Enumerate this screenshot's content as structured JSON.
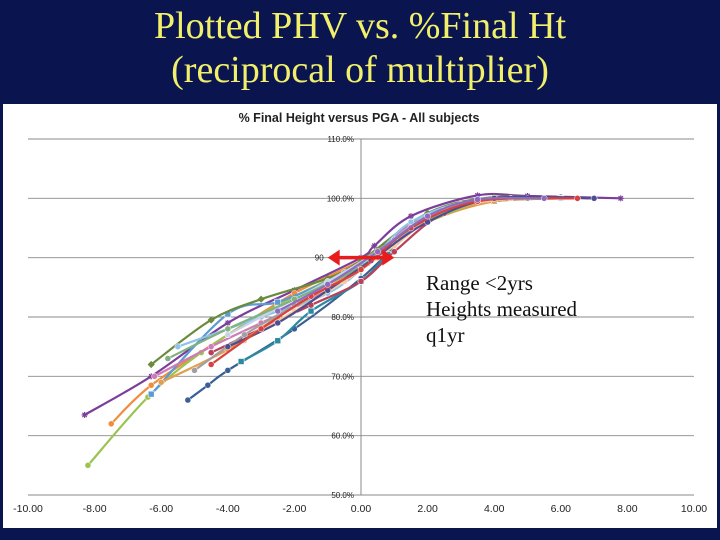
{
  "slide": {
    "title_line1": "Plotted PHV vs. %Final Ht",
    "title_line2": "(reciprocal of multiplier)"
  },
  "annotation": {
    "lines": [
      "Range <2yrs",
      "Heights measured",
      "q1yr"
    ]
  },
  "colors": {
    "background": "#0a1550",
    "title": "#f2f06a",
    "range_arrow": "#e81c1c"
  },
  "chart_data": {
    "type": "line",
    "title": "% Final Height versus PGA - All subjects",
    "xlabel": "",
    "ylabel": "",
    "xlim": [
      -10,
      10
    ],
    "ylim": [
      50,
      110
    ],
    "x_ticks": [
      -10,
      -8,
      -6,
      -4,
      -2,
      0,
      2,
      4,
      6,
      8,
      10
    ],
    "x_tick_labels": [
      "-10.00",
      "-8.00",
      "-6.00",
      "-4.00",
      "-2.00",
      "0.00",
      "2.00",
      "4.00",
      "6.00",
      "8.00",
      "10.00"
    ],
    "y_ticks": [
      50,
      60,
      70,
      80,
      90,
      100,
      110
    ],
    "y_tick_labels": [
      "50.0%",
      "60.0%",
      "70.0%",
      "80.0%",
      "90.0%",
      "100.0%",
      "110.0%"
    ],
    "grid": true,
    "legend": "none",
    "range_arrow": {
      "x_start": -1.0,
      "x_end": 1.0,
      "y": 90
    },
    "series": [
      {
        "color": "#7b3f9b",
        "marker": "star",
        "x": [
          -8.3,
          -6.3,
          -4.0,
          -2.0,
          0.0,
          0.4,
          1.5,
          3.5,
          5.0,
          7.8
        ],
        "y": [
          63.5,
          70.0,
          79.0,
          84.5,
          90.0,
          92.0,
          97.0,
          100.5,
          100.4,
          100.0
        ]
      },
      {
        "color": "#f08c3c",
        "marker": "circle",
        "x": [
          -7.5,
          -6.3,
          -4.0,
          -2.0,
          0.0,
          2.0,
          4.0,
          6.0
        ],
        "y": [
          62.0,
          68.5,
          77.0,
          84.0,
          89.5,
          96.0,
          99.5,
          100.0
        ]
      },
      {
        "color": "#9bc34f",
        "marker": "circle",
        "x": [
          -8.2,
          -6.4,
          -4.8,
          -2.5,
          0.0,
          2.0,
          4.0,
          6.5
        ],
        "y": [
          55.0,
          66.5,
          74.0,
          82.0,
          89.0,
          96.0,
          99.6,
          100.0
        ]
      },
      {
        "color": "#3a5f94",
        "marker": "circle",
        "x": [
          -5.2,
          -4.6,
          -4.0,
          -2.0,
          0.0,
          2.0,
          4.0,
          6.0
        ],
        "y": [
          66.0,
          68.5,
          71.0,
          78.0,
          86.5,
          96.5,
          99.8,
          100.2
        ]
      },
      {
        "color": "#2c8aa0",
        "marker": "square",
        "x": [
          -3.6,
          -2.5,
          -1.5,
          0.0,
          0.8,
          2.0,
          4.0,
          6.0
        ],
        "y": [
          72.5,
          76.0,
          81.0,
          86.0,
          90.5,
          97.0,
          99.5,
          100.0
        ]
      },
      {
        "color": "#5b9bd5",
        "marker": "square",
        "x": [
          -6.3,
          -4.0,
          -2.5,
          -1.0,
          0.0,
          1.5,
          3.5,
          6.0
        ],
        "y": [
          67.0,
          80.5,
          82.5,
          86.0,
          89.0,
          95.5,
          99.5,
          100.0
        ]
      },
      {
        "color": "#6a8a3c",
        "marker": "diamond",
        "x": [
          -6.3,
          -4.5,
          -3.0,
          -1.0,
          0.0,
          2.0,
          4.0,
          6.5
        ],
        "y": [
          72.0,
          79.5,
          83.0,
          86.5,
          89.5,
          97.5,
          100.2,
          100.0
        ]
      },
      {
        "color": "#b8405a",
        "marker": "circle",
        "x": [
          -4.5,
          -3.0,
          -1.5,
          0.0,
          1.0,
          2.5,
          4.5,
          7.0
        ],
        "y": [
          74.0,
          78.0,
          82.0,
          86.0,
          91.0,
          97.5,
          100.0,
          100.0
        ]
      },
      {
        "color": "#cf7bb5",
        "marker": "circle",
        "x": [
          -6.2,
          -4.5,
          -3.0,
          -1.5,
          0.0,
          1.5,
          3.5,
          6.0
        ],
        "y": [
          70.0,
          75.0,
          79.0,
          83.0,
          88.0,
          95.5,
          99.5,
          100.0
        ]
      },
      {
        "color": "#8fc3e8",
        "marker": "circle",
        "x": [
          -5.5,
          -3.0,
          -1.0,
          0.2,
          1.5,
          3.5,
          6.0
        ],
        "y": [
          75.0,
          80.0,
          84.0,
          89.0,
          96.0,
          99.8,
          100.0
        ]
      },
      {
        "color": "#e0a050",
        "marker": "circle",
        "x": [
          -6.0,
          -4.0,
          -2.5,
          -1.0,
          0.5,
          2.0,
          4.0,
          6.5
        ],
        "y": [
          69.0,
          74.5,
          80.0,
          85.0,
          90.0,
          96.5,
          99.5,
          100.0
        ]
      },
      {
        "color": "#a0a0a0",
        "marker": "circle",
        "x": [
          -5.0,
          -3.5,
          -2.0,
          -0.5,
          1.0,
          3.0,
          5.0
        ],
        "y": [
          71.0,
          77.0,
          82.0,
          87.5,
          93.0,
          99.0,
          100.0
        ]
      },
      {
        "color": "#c7d4e8",
        "marker": "circle",
        "x": [
          -4.0,
          -2.5,
          -1.0,
          0.5,
          2.0,
          4.0,
          6.0
        ],
        "y": [
          77.0,
          81.5,
          86.0,
          91.0,
          97.0,
          100.0,
          100.0
        ]
      },
      {
        "color": "#f5c8a0",
        "marker": "circle",
        "x": [
          -3.5,
          -2.0,
          -0.5,
          1.0,
          2.5,
          4.5
        ],
        "y": [
          76.0,
          81.0,
          86.0,
          92.0,
          98.0,
          100.0
        ]
      },
      {
        "color": "#7fb27f",
        "marker": "circle",
        "x": [
          -5.8,
          -4.0,
          -2.0,
          0.0,
          1.5,
          3.5,
          5.5
        ],
        "y": [
          73.0,
          78.0,
          83.0,
          88.5,
          95.0,
          99.5,
          100.0
        ]
      },
      {
        "color": "#4d4d8f",
        "marker": "circle",
        "x": [
          -4.0,
          -2.5,
          -1.0,
          0.3,
          2.0,
          4.0,
          7.0
        ],
        "y": [
          75.0,
          79.0,
          84.5,
          89.5,
          96.0,
          100.0,
          100.0
        ]
      },
      {
        "color": "#d94040",
        "marker": "circle",
        "x": [
          -4.5,
          -3.0,
          -1.5,
          0.0,
          1.5,
          3.5,
          6.5
        ],
        "y": [
          72.0,
          78.0,
          83.5,
          88.0,
          95.0,
          99.5,
          100.0
        ]
      },
      {
        "color": "#8e6bbf",
        "marker": "circle",
        "x": [
          -2.5,
          -1.0,
          0.5,
          2.0,
          3.5,
          5.5
        ],
        "y": [
          81.0,
          85.5,
          91.0,
          97.0,
          99.8,
          100.0
        ]
      }
    ]
  }
}
